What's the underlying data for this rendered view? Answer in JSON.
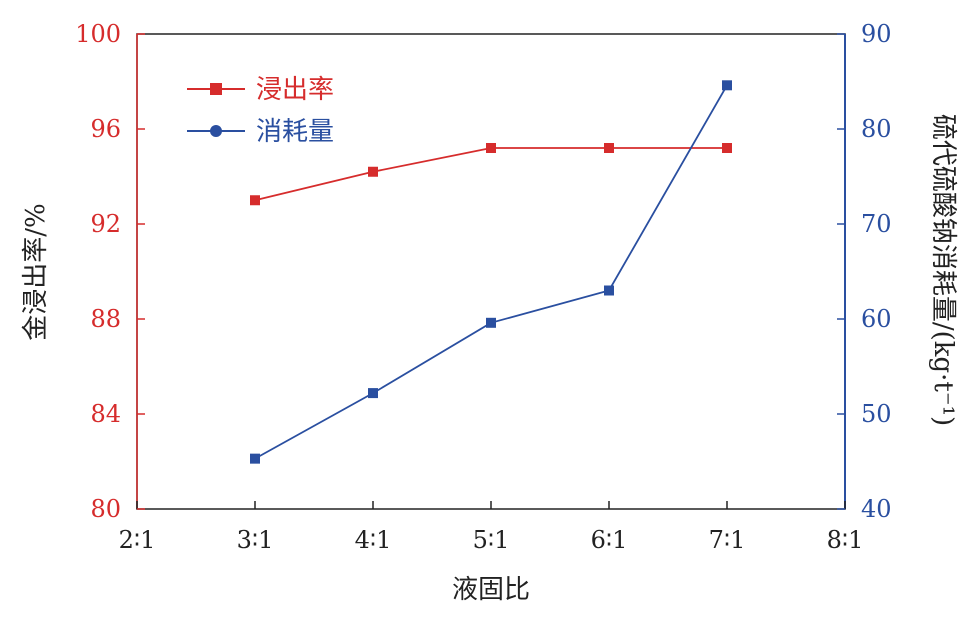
{
  "chart_data": {
    "type": "line",
    "x": {
      "label": "液固比",
      "categories": [
        "2∶1",
        "3∶1",
        "4∶1",
        "5∶1",
        "6∶1",
        "7∶1",
        "8∶1"
      ],
      "range": [
        2,
        8
      ]
    },
    "y_left": {
      "label": "金浸出率/%",
      "ylim": [
        80,
        100
      ],
      "ticks": [
        "80",
        "84",
        "88",
        "92",
        "96",
        "100"
      ],
      "color": "#d62c2c"
    },
    "y_right": {
      "label": "硫代硫酸钠消耗量/(kg·t⁻¹)",
      "ylim": [
        40,
        90
      ],
      "ticks": [
        "40",
        "50",
        "60",
        "70",
        "80",
        "90"
      ],
      "color": "#2a4fa0"
    },
    "series": [
      {
        "name": "浸出率",
        "axis": "left",
        "color": "#d62c2c",
        "marker": "square",
        "x": [
          3,
          4,
          5,
          6,
          7
        ],
        "values": [
          93.0,
          94.2,
          95.2,
          95.2,
          95.2
        ]
      },
      {
        "name": "消耗量",
        "axis": "right",
        "color": "#2a4fa0",
        "marker": "circle",
        "x": [
          3,
          4,
          5,
          6,
          7
        ],
        "values": [
          45.3,
          52.2,
          59.6,
          63.0,
          84.6
        ]
      }
    ],
    "legend_position": "top-left",
    "grid": false
  }
}
